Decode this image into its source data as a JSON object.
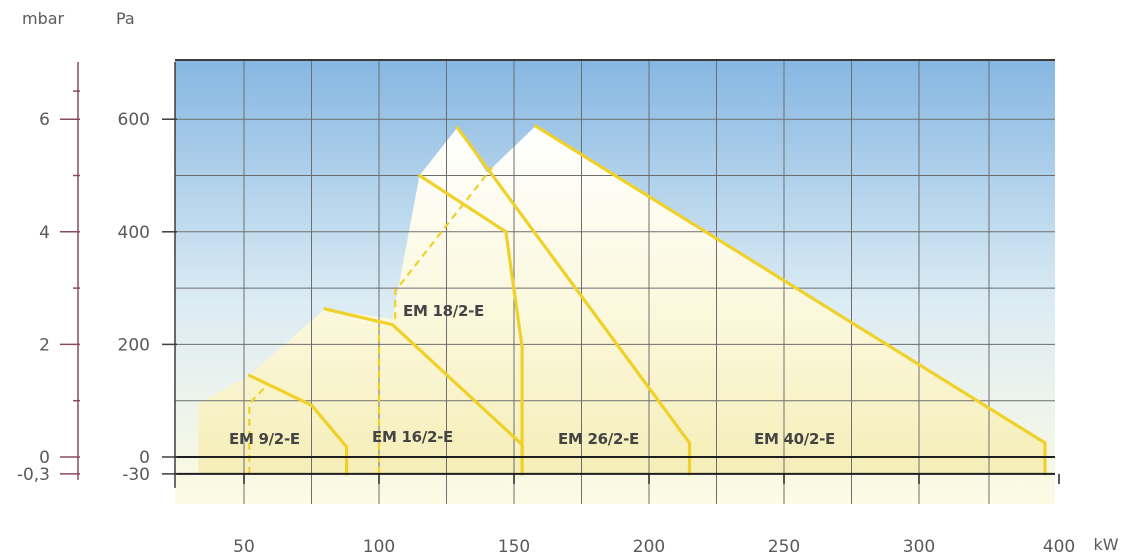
{
  "chart_data": {
    "type": "line",
    "x_unit": "kW",
    "y_units": {
      "left": "mbar",
      "right": "Pa"
    },
    "x_ticks": [
      50,
      100,
      150,
      200,
      250,
      300,
      400
    ],
    "mbar_ticks": [
      {
        "label": "6",
        "pa": 600
      },
      {
        "label": "4",
        "pa": 400
      },
      {
        "label": "2",
        "pa": 200
      },
      {
        "label": "0",
        "pa": 0
      },
      {
        "label": "-0,3",
        "pa": -30
      }
    ],
    "pa_ticks": [
      {
        "label": "600",
        "pa": 600
      },
      {
        "label": "400",
        "pa": 400
      },
      {
        "label": "200",
        "pa": 200
      },
      {
        "label": "0",
        "pa": 0
      },
      {
        "label": "-30",
        "pa": -30
      }
    ],
    "ylim_pa": [
      -30,
      700
    ],
    "grid": true,
    "colors": {
      "curve": "#f0d12a",
      "gridline": "#6e6e6e",
      "background_top": "#86b7e2",
      "background_bottom": "#fdfbe3",
      "envelope_fill": "#f7f1c4"
    },
    "series": [
      {
        "name": "EM 9/2-E",
        "points": [
          [
            52,
            145
          ],
          [
            75,
            92
          ],
          [
            88,
            18
          ],
          [
            88,
            -30
          ]
        ],
        "dashed": [
          [
            52,
            -30
          ],
          [
            52,
            95
          ],
          [
            58,
            125
          ]
        ]
      },
      {
        "name": "EM 16/2-E",
        "points": [
          [
            80,
            263
          ],
          [
            105,
            235
          ],
          [
            153,
            22
          ],
          [
            153,
            -30
          ]
        ],
        "dashed": [
          [
            100,
            -30
          ],
          [
            100,
            230
          ]
        ]
      },
      {
        "name": "EM 18/2-E",
        "points": [
          [
            115,
            500
          ],
          [
            147,
            400
          ],
          [
            153,
            195
          ],
          [
            153,
            -30
          ]
        ],
        "dashed": [
          [
            106,
            245
          ],
          [
            106,
            295
          ],
          [
            142,
            515
          ]
        ]
      },
      {
        "name": "EM 26/2-E",
        "points": [
          [
            129,
            585
          ],
          [
            215,
            25
          ],
          [
            215,
            -30
          ]
        ],
        "dashed": []
      },
      {
        "name": "EM 40/2-E",
        "points": [
          [
            158,
            588
          ],
          [
            390,
            25
          ],
          [
            390,
            -30
          ]
        ],
        "dashed": []
      }
    ]
  }
}
